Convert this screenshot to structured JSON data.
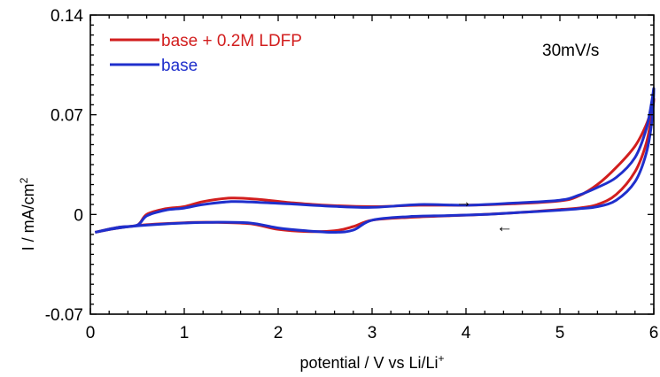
{
  "chart_data": {
    "type": "line",
    "xlabel": "potential / V vs Li/Li",
    "xlabel_sup": "+",
    "ylabel": "I / mA/cm",
    "ylabel_sup": "2",
    "xlim": [
      0,
      6
    ],
    "ylim": [
      -0.07,
      0.14
    ],
    "x_ticks": [
      0,
      1,
      2,
      3,
      4,
      5,
      6
    ],
    "x_tick_labels": [
      "0",
      "1",
      "2",
      "3",
      "4",
      "5",
      "6"
    ],
    "y_ticks": [
      -0.07,
      0,
      0.07,
      0.14
    ],
    "y_tick_labels": [
      "-0.07",
      "0",
      "0.07",
      "0.14"
    ],
    "grid": false,
    "legend_position": "top-left",
    "annotation": "30mV/s",
    "direction_arrows": [
      "→",
      "←"
    ],
    "series": [
      {
        "name": "base + 0.2M LDFP",
        "color": "#d21e1e",
        "points": [
          [
            0.05,
            -0.0125
          ],
          [
            0.3,
            -0.009
          ],
          [
            0.5,
            -0.0075
          ],
          [
            0.6,
            0.0
          ],
          [
            0.8,
            0.004
          ],
          [
            1.0,
            0.0055
          ],
          [
            1.2,
            0.009
          ],
          [
            1.5,
            0.0115
          ],
          [
            1.8,
            0.0105
          ],
          [
            2.1,
            0.0085
          ],
          [
            2.5,
            0.0065
          ],
          [
            3.0,
            0.0055
          ],
          [
            3.5,
            0.0065
          ],
          [
            4.0,
            0.0065
          ],
          [
            4.5,
            0.0075
          ],
          [
            5.0,
            0.0095
          ],
          [
            5.2,
            0.013
          ],
          [
            5.4,
            0.021
          ],
          [
            5.6,
            0.033
          ],
          [
            5.8,
            0.048
          ],
          [
            5.92,
            0.063
          ],
          [
            5.98,
            0.075
          ],
          [
            6.0,
            0.081
          ],
          [
            5.98,
            0.071
          ],
          [
            5.92,
            0.05
          ],
          [
            5.8,
            0.03
          ],
          [
            5.6,
            0.014
          ],
          [
            5.4,
            0.007
          ],
          [
            5.2,
            0.0045
          ],
          [
            5.0,
            0.0035
          ],
          [
            4.6,
            0.0015
          ],
          [
            4.2,
            0.0
          ],
          [
            3.8,
            -0.001
          ],
          [
            3.4,
            -0.002
          ],
          [
            3.0,
            -0.004
          ],
          [
            2.8,
            -0.0085
          ],
          [
            2.6,
            -0.0115
          ],
          [
            2.3,
            -0.012
          ],
          [
            2.0,
            -0.0105
          ],
          [
            1.7,
            -0.0065
          ],
          [
            1.3,
            -0.0055
          ],
          [
            1.0,
            -0.0058
          ],
          [
            0.6,
            -0.0072
          ],
          [
            0.3,
            -0.0095
          ],
          [
            0.05,
            -0.0125
          ]
        ]
      },
      {
        "name": "base",
        "color": "#1f2fcc",
        "points": [
          [
            0.05,
            -0.0125
          ],
          [
            0.3,
            -0.009
          ],
          [
            0.5,
            -0.0075
          ],
          [
            0.6,
            -0.001
          ],
          [
            0.8,
            0.003
          ],
          [
            1.0,
            0.0045
          ],
          [
            1.2,
            0.007
          ],
          [
            1.5,
            0.009
          ],
          [
            1.8,
            0.0085
          ],
          [
            2.1,
            0.0075
          ],
          [
            2.5,
            0.006
          ],
          [
            3.0,
            0.005
          ],
          [
            3.5,
            0.007
          ],
          [
            4.0,
            0.0065
          ],
          [
            4.5,
            0.008
          ],
          [
            5.0,
            0.01
          ],
          [
            5.2,
            0.0135
          ],
          [
            5.4,
            0.019
          ],
          [
            5.6,
            0.026
          ],
          [
            5.8,
            0.04
          ],
          [
            5.92,
            0.06
          ],
          [
            5.98,
            0.08
          ],
          [
            6.0,
            0.088
          ],
          [
            5.98,
            0.066
          ],
          [
            5.92,
            0.043
          ],
          [
            5.8,
            0.023
          ],
          [
            5.6,
            0.01
          ],
          [
            5.4,
            0.0055
          ],
          [
            5.2,
            0.004
          ],
          [
            5.0,
            0.003
          ],
          [
            4.6,
            0.0015
          ],
          [
            4.2,
            0.0
          ],
          [
            3.8,
            -0.0008
          ],
          [
            3.4,
            -0.0015
          ],
          [
            3.0,
            -0.004
          ],
          [
            2.8,
            -0.011
          ],
          [
            2.6,
            -0.0125
          ],
          [
            2.3,
            -0.0115
          ],
          [
            2.0,
            -0.0095
          ],
          [
            1.7,
            -0.006
          ],
          [
            1.3,
            -0.0055
          ],
          [
            1.0,
            -0.006
          ],
          [
            0.6,
            -0.0075
          ],
          [
            0.3,
            -0.0095
          ],
          [
            0.05,
            -0.0125
          ]
        ]
      }
    ]
  }
}
